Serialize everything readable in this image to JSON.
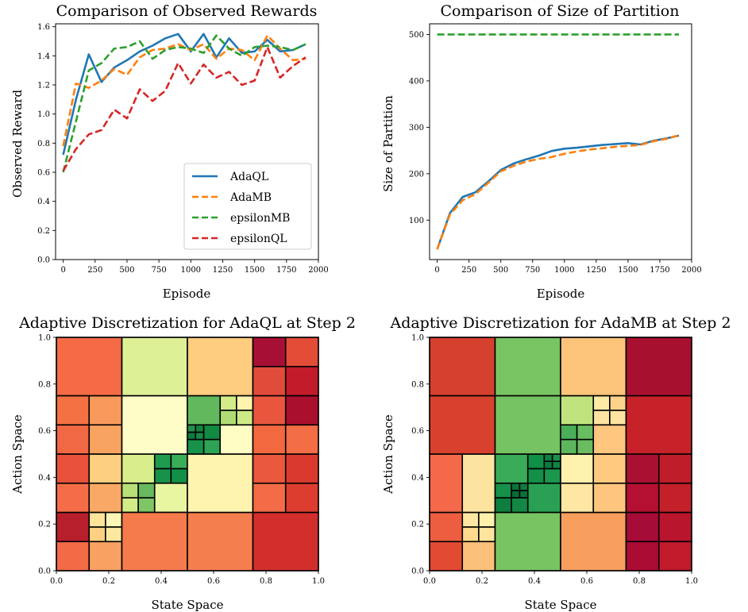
{
  "chart_data": [
    {
      "type": "line",
      "title": "Comparison of Observed Rewards",
      "xlabel": "Episode",
      "ylabel": "Observed Reward",
      "xlim": [
        -60,
        2000
      ],
      "ylim": [
        0.0,
        1.62
      ],
      "xticks": [
        "0",
        "250",
        "500",
        "750",
        "1000",
        "1250",
        "1500",
        "1750",
        "2000"
      ],
      "xtick_values": [
        0,
        250,
        500,
        750,
        1000,
        1250,
        1500,
        1750,
        2000
      ],
      "yticks": [
        "0.0",
        "0.2",
        "0.4",
        "0.6",
        "0.8",
        "1.0",
        "1.2",
        "1.4",
        "1.6"
      ],
      "ytick_values": [
        0.0,
        0.2,
        0.4,
        0.6,
        0.8,
        1.0,
        1.2,
        1.4,
        1.6
      ],
      "legend": "lower-right",
      "x": [
        0,
        100,
        200,
        300,
        400,
        500,
        600,
        700,
        800,
        900,
        1000,
        1100,
        1200,
        1300,
        1400,
        1500,
        1600,
        1700,
        1800,
        1900
      ],
      "series": [
        {
          "name": "AdaQL",
          "color": "#1f77b4",
          "dash": "solid",
          "values": [
            0.72,
            1.1,
            1.41,
            1.22,
            1.32,
            1.37,
            1.43,
            1.47,
            1.52,
            1.55,
            1.43,
            1.55,
            1.39,
            1.52,
            1.42,
            1.43,
            1.51,
            1.43,
            1.44,
            1.48
          ]
        },
        {
          "name": "AdaMB",
          "color": "#ff7f0e",
          "dash": "dashed",
          "values": [
            0.78,
            1.21,
            1.18,
            1.23,
            1.31,
            1.27,
            1.39,
            1.44,
            1.45,
            1.48,
            1.44,
            1.48,
            1.38,
            1.45,
            1.44,
            1.37,
            1.54,
            1.45,
            1.37,
            1.38
          ]
        },
        {
          "name": "epsilonMB",
          "color": "#2ca02c",
          "dash": "dashed",
          "values": [
            0.6,
            0.95,
            1.3,
            1.35,
            1.45,
            1.46,
            1.5,
            1.38,
            1.44,
            1.46,
            1.45,
            1.42,
            1.54,
            1.45,
            1.4,
            1.46,
            1.47,
            1.46,
            1.44,
            1.48
          ]
        },
        {
          "name": "epsilonQL",
          "color": "#d62728",
          "dash": "dashed",
          "values": [
            0.61,
            0.76,
            0.86,
            0.89,
            1.03,
            0.97,
            1.17,
            1.09,
            1.16,
            1.35,
            1.21,
            1.34,
            1.25,
            1.29,
            1.2,
            1.23,
            1.46,
            1.25,
            1.33,
            1.39
          ]
        }
      ]
    },
    {
      "type": "line",
      "title": "Comparison of Size of Partition",
      "xlabel": "Episode",
      "ylabel": "Size of Partition",
      "xlim": [
        -60,
        2000
      ],
      "ylim": [
        15,
        523
      ],
      "xticks": [
        "0",
        "250",
        "500",
        "750",
        "1000",
        "1250",
        "1500",
        "1750",
        "2000"
      ],
      "xtick_values": [
        0,
        250,
        500,
        750,
        1000,
        1250,
        1500,
        1750,
        2000
      ],
      "yticks": [
        "100",
        "200",
        "300",
        "400",
        "500"
      ],
      "ytick_values": [
        100,
        200,
        300,
        400,
        500
      ],
      "x": [
        0,
        100,
        200,
        300,
        400,
        500,
        600,
        700,
        800,
        900,
        1000,
        1100,
        1200,
        1300,
        1400,
        1500,
        1600,
        1700,
        1800,
        1900
      ],
      "series": [
        {
          "color": "#2ca02c",
          "dash": "dashed",
          "values": [
            500,
            500,
            500,
            500,
            500,
            500,
            500,
            500,
            500,
            500,
            500,
            500,
            500,
            500,
            500,
            500,
            500,
            500,
            500,
            500
          ]
        },
        {
          "color": "#1f77b4",
          "dash": "solid",
          "values": [
            37,
            115,
            150,
            160,
            183,
            208,
            222,
            231,
            239,
            249,
            254,
            256,
            259,
            262,
            264,
            266,
            263,
            271,
            276,
            282
          ]
        },
        {
          "color": "#ff7f0e",
          "dash": "dashed",
          "values": [
            37,
            112,
            143,
            156,
            180,
            205,
            217,
            226,
            232,
            236,
            243,
            248,
            252,
            255,
            258,
            260,
            262,
            270,
            275,
            283
          ]
        }
      ]
    },
    {
      "type": "heatmap",
      "title": "Adaptive Discretization for AdaQL at Step 2",
      "xlabel": "State Space",
      "ylabel": "Action Space",
      "xlim": [
        0,
        1
      ],
      "ylim": [
        0,
        1
      ],
      "xticks": [
        "0.0",
        "0.2",
        "0.4",
        "0.6",
        "0.8",
        "1.0"
      ],
      "xtick_values": [
        0.0,
        0.2,
        0.4,
        0.6,
        0.8,
        1.0
      ],
      "yticks": [
        "0.0",
        "0.2",
        "0.4",
        "0.6",
        "0.8",
        "1.0"
      ],
      "ytick_values": [
        0.0,
        0.2,
        0.4,
        0.6,
        0.8,
        1.0
      ],
      "cells": [
        [
          0.0,
          0.125,
          0.125,
          0.25,
          "#b81f2c"
        ],
        [
          0.0,
          0.125,
          0.0,
          0.125,
          "#f36a47"
        ],
        [
          0.125,
          0.25,
          0.0,
          0.125,
          "#f8a163"
        ],
        [
          0.125,
          0.1875,
          0.125,
          0.1875,
          "#fcd184"
        ],
        [
          0.1875,
          0.25,
          0.125,
          0.1875,
          "#fee8a0"
        ],
        [
          0.125,
          0.1875,
          0.1875,
          0.25,
          "#fee39a"
        ],
        [
          0.1875,
          0.25,
          0.1875,
          0.25,
          "#fff5b5"
        ],
        [
          0.0,
          0.125,
          0.25,
          0.375,
          "#f46d48"
        ],
        [
          0.125,
          0.25,
          0.25,
          0.375,
          "#f9a965"
        ],
        [
          0.0,
          0.125,
          0.375,
          0.5,
          "#e8523c"
        ],
        [
          0.125,
          0.25,
          0.375,
          0.5,
          "#fdd081"
        ],
        [
          0.25,
          0.375,
          0.375,
          0.5,
          "#d8ee8c"
        ],
        [
          0.375,
          0.4375,
          0.375,
          0.4375,
          "#18924a"
        ],
        [
          0.4375,
          0.5,
          0.375,
          0.4375,
          "#139048"
        ],
        [
          0.375,
          0.4375,
          0.4375,
          0.5,
          "#1f9a4f"
        ],
        [
          0.4375,
          0.5,
          0.4375,
          0.5,
          "#3aad59"
        ],
        [
          0.25,
          0.3125,
          0.25,
          0.3125,
          "#d3ec88"
        ],
        [
          0.3125,
          0.375,
          0.25,
          0.3125,
          "#7fc565"
        ],
        [
          0.25,
          0.3125,
          0.3125,
          0.375,
          "#b7e077"
        ],
        [
          0.3125,
          0.375,
          0.3125,
          0.375,
          "#67b85e"
        ],
        [
          0.375,
          0.5,
          0.25,
          0.375,
          "#e9f6a1"
        ],
        [
          0.25,
          0.5,
          0.0,
          0.25,
          "#f57a4c"
        ],
        [
          0.5,
          0.75,
          0.0,
          0.25,
          "#f57e4e"
        ],
        [
          0.75,
          1.0,
          0.0,
          0.25,
          "#d22f2c"
        ],
        [
          0.5,
          0.75,
          0.25,
          0.5,
          "#fff3b0"
        ],
        [
          0.75,
          0.875,
          0.25,
          0.375,
          "#f36b47"
        ],
        [
          0.875,
          1.0,
          0.25,
          0.375,
          "#dd3d2f"
        ],
        [
          0.75,
          0.875,
          0.375,
          0.5,
          "#ea583e"
        ],
        [
          0.875,
          1.0,
          0.375,
          0.5,
          "#da3a2e"
        ],
        [
          0.0,
          0.125,
          0.5,
          0.625,
          "#f16845"
        ],
        [
          0.125,
          0.25,
          0.5,
          0.625,
          "#f9a361"
        ],
        [
          0.0,
          0.125,
          0.625,
          0.75,
          "#f47144"
        ],
        [
          0.125,
          0.25,
          0.625,
          0.75,
          "#f89a5c"
        ],
        [
          0.25,
          0.5,
          0.5,
          0.75,
          "#fffdc7"
        ],
        [
          0.5,
          0.5625,
          0.5,
          0.5625,
          "#17924a"
        ],
        [
          0.5625,
          0.625,
          0.5,
          0.5625,
          "#2ea355"
        ],
        [
          0.5,
          0.53125,
          0.5625,
          0.59375,
          "#0c7a3e"
        ],
        [
          0.53125,
          0.5625,
          0.5625,
          0.59375,
          "#18894a"
        ],
        [
          0.5,
          0.53125,
          0.59375,
          0.625,
          "#228f4c"
        ],
        [
          0.53125,
          0.5625,
          0.59375,
          0.625,
          "#13843f"
        ],
        [
          0.5625,
          0.625,
          0.5625,
          0.625,
          "#128a41"
        ],
        [
          0.625,
          0.75,
          0.5,
          0.625,
          "#fffcc4"
        ],
        [
          0.5,
          0.625,
          0.625,
          0.75,
          "#62b85d"
        ],
        [
          0.625,
          0.6875,
          0.625,
          0.6875,
          "#b0dd73"
        ],
        [
          0.6875,
          0.75,
          0.625,
          0.6875,
          "#cdea86"
        ],
        [
          0.625,
          0.6875,
          0.6875,
          0.75,
          "#d3ec88"
        ],
        [
          0.6875,
          0.75,
          0.6875,
          0.75,
          "#fff4ae"
        ],
        [
          0.75,
          0.875,
          0.5,
          0.625,
          "#f2683f"
        ],
        [
          0.875,
          1.0,
          0.5,
          0.625,
          "#f36d45"
        ],
        [
          0.75,
          0.875,
          0.625,
          0.75,
          "#e9553d"
        ],
        [
          0.875,
          1.0,
          0.625,
          0.75,
          "#ab0f2e"
        ],
        [
          0.0,
          0.25,
          0.75,
          1.0,
          "#f46b46"
        ],
        [
          0.25,
          0.5,
          0.75,
          1.0,
          "#ddf096"
        ],
        [
          0.5,
          0.75,
          0.75,
          1.0,
          "#fecd80"
        ],
        [
          0.75,
          0.875,
          0.75,
          0.875,
          "#e04b3a"
        ],
        [
          0.875,
          1.0,
          0.75,
          0.875,
          "#c21b2a"
        ],
        [
          0.75,
          0.875,
          0.875,
          1.0,
          "#a71034"
        ],
        [
          0.875,
          1.0,
          0.875,
          1.0,
          "#e34c37"
        ]
      ]
    },
    {
      "type": "heatmap",
      "title": "Adaptive Discretization for AdaMB at Step 2",
      "xlabel": "State Space",
      "ylabel": "Action Space",
      "xlim": [
        0,
        1
      ],
      "ylim": [
        0,
        1
      ],
      "xticks": [
        "0.0",
        "0.2",
        "0.4",
        "0.6",
        "0.8",
        "1.0"
      ],
      "xtick_values": [
        0.0,
        0.2,
        0.4,
        0.6,
        0.8,
        1.0
      ],
      "yticks": [
        "0.0",
        "0.2",
        "0.4",
        "0.6",
        "0.8",
        "1.0"
      ],
      "ytick_values": [
        0.0,
        0.2,
        0.4,
        0.6,
        0.8,
        1.0
      ],
      "cells": [
        [
          0.0,
          0.125,
          0.0,
          0.125,
          "#e34a34"
        ],
        [
          0.125,
          0.25,
          0.0,
          0.125,
          "#fbc079"
        ],
        [
          0.125,
          0.1875,
          0.125,
          0.1875,
          "#fdda8e"
        ],
        [
          0.1875,
          0.25,
          0.125,
          0.1875,
          "#fee49d"
        ],
        [
          0.125,
          0.1875,
          0.1875,
          0.25,
          "#fde6a1"
        ],
        [
          0.1875,
          0.25,
          0.1875,
          0.25,
          "#fff0ab"
        ],
        [
          0.0,
          0.125,
          0.125,
          0.25,
          "#ed5e40"
        ],
        [
          0.0,
          0.125,
          0.25,
          0.5,
          "#f3694a"
        ],
        [
          0.125,
          0.25,
          0.25,
          0.5,
          "#fde3a0"
        ],
        [
          0.25,
          0.5,
          0.0,
          0.25,
          "#78c463"
        ],
        [
          0.25,
          0.3125,
          0.25,
          0.3125,
          "#0e7e3f"
        ],
        [
          0.3125,
          0.375,
          0.25,
          0.3125,
          "#138743"
        ],
        [
          0.25,
          0.3125,
          0.3125,
          0.375,
          "#17904a"
        ],
        [
          0.3125,
          0.34375,
          0.3125,
          0.34375,
          "#0b6b36"
        ],
        [
          0.34375,
          0.375,
          0.3125,
          0.34375,
          "#08713a"
        ],
        [
          0.3125,
          0.34375,
          0.34375,
          0.375,
          "#0a733b"
        ],
        [
          0.34375,
          0.375,
          0.34375,
          0.375,
          "#117a40"
        ],
        [
          0.375,
          0.5,
          0.25,
          0.375,
          "#29a053"
        ],
        [
          0.25,
          0.375,
          0.375,
          0.5,
          "#3aab58"
        ],
        [
          0.375,
          0.4375,
          0.375,
          0.4375,
          "#138f49"
        ],
        [
          0.4375,
          0.5,
          0.375,
          0.4375,
          "#1a964d"
        ],
        [
          0.375,
          0.4375,
          0.4375,
          0.5,
          "#109047"
        ],
        [
          0.4375,
          0.46875,
          0.4375,
          0.46875,
          "#0b7c3e"
        ],
        [
          0.46875,
          0.5,
          0.4375,
          0.46875,
          "#0f8543"
        ],
        [
          0.4375,
          0.46875,
          0.46875,
          0.5,
          "#0d8041"
        ],
        [
          0.46875,
          0.5,
          0.46875,
          0.5,
          "#19904b"
        ],
        [
          0.5,
          0.75,
          0.0,
          0.25,
          "#f89e5d"
        ],
        [
          0.5,
          0.625,
          0.25,
          0.375,
          "#fee7a3"
        ],
        [
          0.625,
          0.75,
          0.25,
          0.375,
          "#fdc57d"
        ],
        [
          0.5,
          0.625,
          0.375,
          0.5,
          "#fff2ae"
        ],
        [
          0.625,
          0.75,
          0.375,
          0.5,
          "#fdca80"
        ],
        [
          0.75,
          0.875,
          0.0,
          0.125,
          "#ab0c34"
        ],
        [
          0.875,
          1.0,
          0.0,
          0.125,
          "#c11a2b"
        ],
        [
          0.75,
          0.875,
          0.125,
          0.25,
          "#a50c37"
        ],
        [
          0.875,
          1.0,
          0.125,
          0.25,
          "#b9152d"
        ],
        [
          0.75,
          0.875,
          0.25,
          0.375,
          "#b50f31"
        ],
        [
          0.875,
          1.0,
          0.25,
          0.375,
          "#c3202a"
        ],
        [
          0.75,
          0.875,
          0.375,
          0.5,
          "#aa1032"
        ],
        [
          0.875,
          1.0,
          0.375,
          0.5,
          "#c01d2b"
        ],
        [
          0.0,
          0.25,
          0.5,
          0.75,
          "#d9412f"
        ],
        [
          0.25,
          0.5,
          0.5,
          0.75,
          "#75c363"
        ],
        [
          0.5,
          0.5625,
          0.5,
          0.5625,
          "#5db65d"
        ],
        [
          0.5625,
          0.625,
          0.5,
          0.5625,
          "#6bbb60"
        ],
        [
          0.5,
          0.5625,
          0.5625,
          0.625,
          "#4aae59"
        ],
        [
          0.5625,
          0.625,
          0.5625,
          0.625,
          "#69bc60"
        ],
        [
          0.625,
          0.75,
          0.5,
          0.625,
          "#fec67e"
        ],
        [
          0.5,
          0.625,
          0.625,
          0.75,
          "#c1e37e"
        ],
        [
          0.625,
          0.6875,
          0.625,
          0.6875,
          "#fee4a0"
        ],
        [
          0.6875,
          0.75,
          0.625,
          0.6875,
          "#fee4a0"
        ],
        [
          0.625,
          0.6875,
          0.6875,
          0.75,
          "#fee9a5"
        ],
        [
          0.6875,
          0.75,
          0.6875,
          0.75,
          "#fdd38b"
        ],
        [
          0.75,
          1.0,
          0.5,
          0.75,
          "#c72229"
        ],
        [
          0.0,
          0.25,
          0.75,
          1.0,
          "#d6402e"
        ],
        [
          0.25,
          0.5,
          0.75,
          1.0,
          "#79c463"
        ],
        [
          0.5,
          0.75,
          0.75,
          1.0,
          "#fcc47a"
        ],
        [
          0.75,
          1.0,
          0.75,
          1.0,
          "#a8102f"
        ]
      ]
    }
  ]
}
